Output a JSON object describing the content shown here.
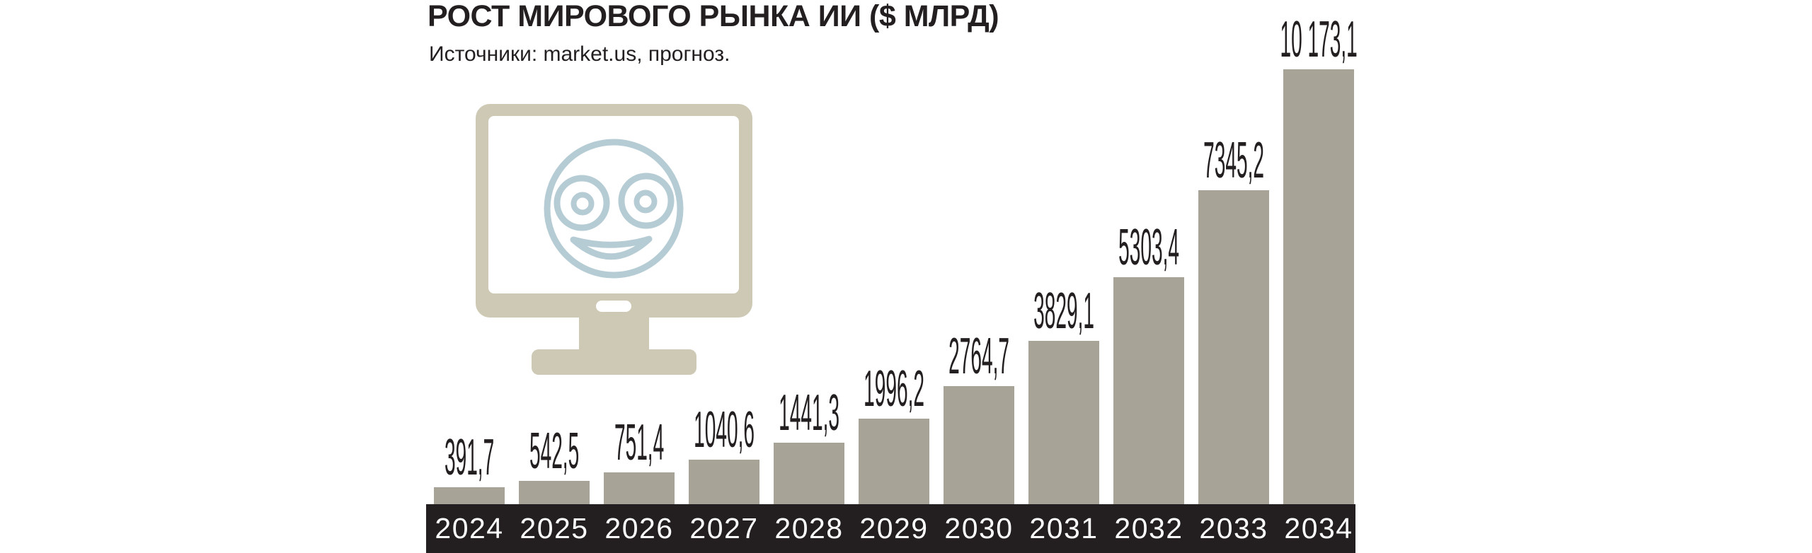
{
  "chart": {
    "title": "РОСТ МИРОВОГО РЫНКА ИИ ($ МЛРД)",
    "subtitle": "Источники: market.us, прогноз."
  },
  "chart_data": {
    "type": "bar",
    "title": "РОСТ МИРОВОГО РЫНКА ИИ ($ МЛРД)",
    "subtitle": "Источники: market.us, прогноз.",
    "categories": [
      "2024",
      "2025",
      "2026",
      "2027",
      "2028",
      "2029",
      "2030",
      "2031",
      "2032",
      "2033",
      "2034"
    ],
    "values": [
      391.7,
      542.5,
      751.4,
      1040.6,
      1441.3,
      1996.2,
      2764.7,
      3829.1,
      5303.4,
      7345.2,
      10173.1
    ],
    "value_labels": [
      "391,7",
      "542,5",
      "751,4",
      "1040,6",
      "1441,3",
      "1996,2",
      "2764,7",
      "3829,1",
      "5303,4",
      "7345,2",
      "10 173,1"
    ],
    "xlabel": "",
    "ylabel": "",
    "ylim": [
      0,
      10173.1
    ],
    "grid": false,
    "legend": "none",
    "units": "$ млрд",
    "decimal_separator": ","
  },
  "icon": {
    "name": "monitor-smiley-icon",
    "description": "computer monitor with smiling face on screen"
  },
  "colors": {
    "background": "#ffffff",
    "bar": "#a7a396",
    "axis_strip": "#231f20",
    "year_text": "#ffffff",
    "value_text": "#231f20",
    "title_text": "#231f20",
    "monitor_body": "#cdc9b4",
    "face_stroke": "#b5ccd4"
  }
}
